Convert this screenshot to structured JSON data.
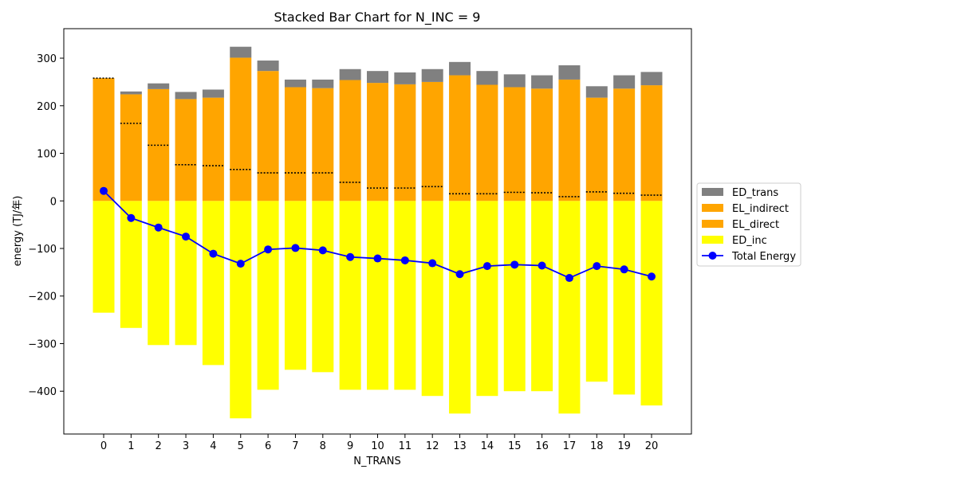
{
  "chart_data": {
    "type": "bar",
    "title": "Stacked Bar Chart for N_INC = 9",
    "xlabel": "N_TRANS",
    "ylabel": "energy (TJ/年)",
    "categories": [
      "0",
      "1",
      "2",
      "3",
      "4",
      "5",
      "6",
      "7",
      "8",
      "9",
      "10",
      "11",
      "12",
      "13",
      "14",
      "15",
      "16",
      "17",
      "18",
      "19",
      "20"
    ],
    "ylim": [
      -490,
      362
    ],
    "yticks": [
      -400,
      -300,
      -200,
      -100,
      0,
      100,
      200,
      300
    ],
    "ytick_labels": [
      "−400",
      "−300",
      "−200",
      "−100",
      "0",
      "100",
      "200",
      "300"
    ],
    "grid": false,
    "legend_position": "right",
    "series": [
      {
        "name": "ED_trans",
        "color": "#808080",
        "values": [
          0,
          6,
          12,
          15,
          17,
          23,
          22,
          16,
          18,
          23,
          25,
          25,
          27,
          28,
          29,
          27,
          28,
          30,
          24,
          28,
          28
        ]
      },
      {
        "name": "EL_indirect",
        "color": "#ffa500",
        "values": [
          0,
          61,
          118,
          138,
          143,
          235,
          214,
          180,
          178,
          215,
          221,
          218,
          220,
          249,
          229,
          221,
          219,
          246,
          198,
          220,
          231
        ]
      },
      {
        "name": "EL_direct",
        "color": "#ffa500",
        "values": [
          258,
          163,
          117,
          76,
          74,
          66,
          59,
          59,
          59,
          39,
          27,
          27,
          30,
          15,
          15,
          18,
          17,
          9,
          19,
          16,
          12
        ]
      },
      {
        "name": "ED_inc",
        "color": "#ffff00",
        "values": [
          -235,
          -267,
          -303,
          -303,
          -345,
          -457,
          -397,
          -355,
          -360,
          -397,
          -397,
          -397,
          -410,
          -447,
          -410,
          -400,
          -400,
          -447,
          -380,
          -407,
          -430
        ]
      }
    ],
    "line_series": {
      "name": "Total Energy",
      "color": "#0000ff",
      "values": [
        21,
        -36,
        -56,
        -75,
        -111,
        -132,
        -102,
        -99,
        -104,
        -118,
        -121,
        -125,
        -131,
        -154,
        -137,
        -134,
        -136,
        -162,
        -137,
        -144,
        -159
      ]
    }
  }
}
